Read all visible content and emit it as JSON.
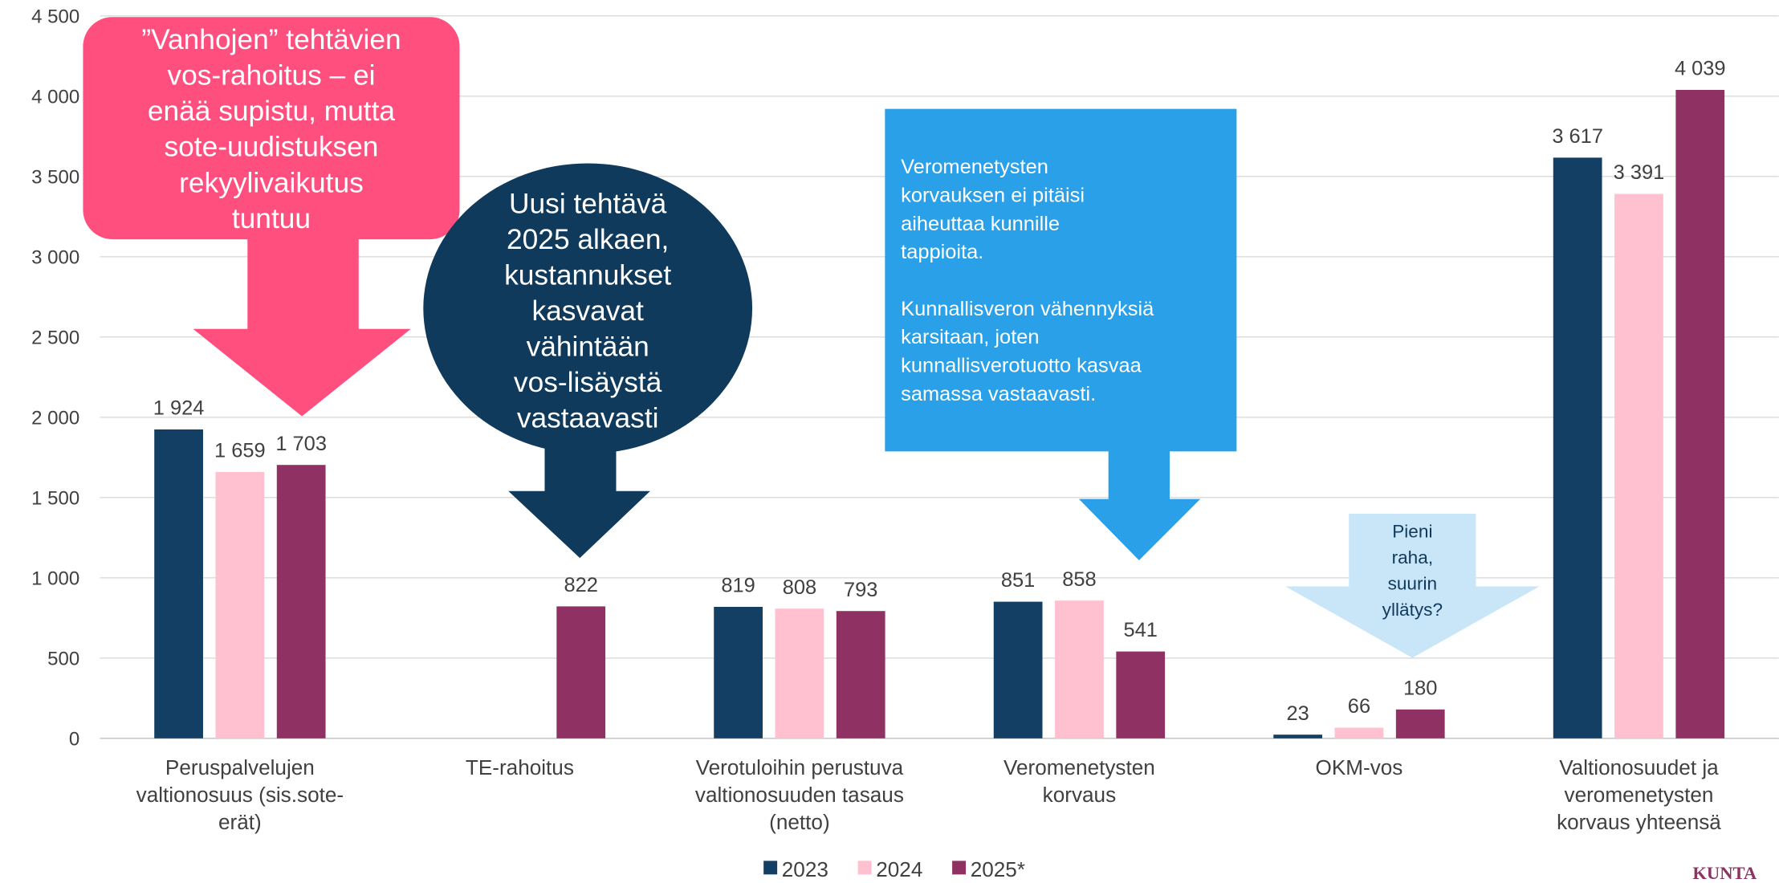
{
  "chart_data": {
    "type": "bar",
    "categories": [
      "Peruspalvelujen\nvaltionosuus (sis.sote-\nerät)",
      "TE-rahoitus",
      "Verotuloihin perustuva\nvaltionosuuden tasaus\n(netto)",
      "Veromenetysten\nkorvaus",
      "OKM-vos",
      "Valtionosuudet ja\nveromenetysten\nkorvaus yhteensä"
    ],
    "series": [
      {
        "name": "2023",
        "color": "#123f63",
        "values": [
          1924,
          null,
          819,
          851,
          23,
          3617
        ],
        "value_labels": [
          "1 924",
          null,
          "819",
          "851",
          "23",
          "3 617"
        ]
      },
      {
        "name": "2024",
        "color": "#ffc0d0",
        "values": [
          1659,
          null,
          808,
          858,
          66,
          3391
        ],
        "value_labels": [
          "1 659",
          null,
          "808",
          "858",
          "66",
          "3 391"
        ]
      },
      {
        "name": "2025*",
        "color": "#8f3263",
        "values": [
          1703,
          822,
          793,
          541,
          180,
          4039
        ],
        "value_labels": [
          "1 703",
          "822",
          "793",
          "541",
          "180",
          "4 039"
        ]
      }
    ],
    "ylim": [
      0,
      4500
    ],
    "yticks": [
      0,
      500,
      {
        "value": 1000,
        "label": "1 000"
      },
      {
        "value": 1500,
        "label": "1 500"
      },
      {
        "value": 2000,
        "label": "2 000"
      },
      {
        "value": 2500,
        "label": "2 500"
      },
      {
        "value": 3000,
        "label": "3 000"
      },
      {
        "value": 3500,
        "label": "3 500"
      },
      {
        "value": 4000,
        "label": "4 000"
      },
      {
        "value": 4500,
        "label": "4 500"
      }
    ],
    "grid": true,
    "legend": "bottom",
    "annotations": [
      "”Vanhojen” tehtävien\nvos-rahoitus – ei\nenää supistu, mutta\nsote-uudistuksen\nrekyylivaikutus\ntuntuu",
      "Uusi tehtävä\n2025 alkaen,\nkustannukset\nkasvavat\nvähintään\nvos-lisäystä\nvastaavasti",
      "Veromenetysten\nkorvauksen ei pitäisi\naiheuttaa kunnille\ntappioita.\n\nKunnallisveron vähennyksiä\nkarsitaan, joten\nkunnallisverotuotto kasvaa\nsamassa vastaavasti.",
      "Pieni\nraha,\nsuurin\nyllätys?"
    ],
    "logo": "KUNTA"
  }
}
